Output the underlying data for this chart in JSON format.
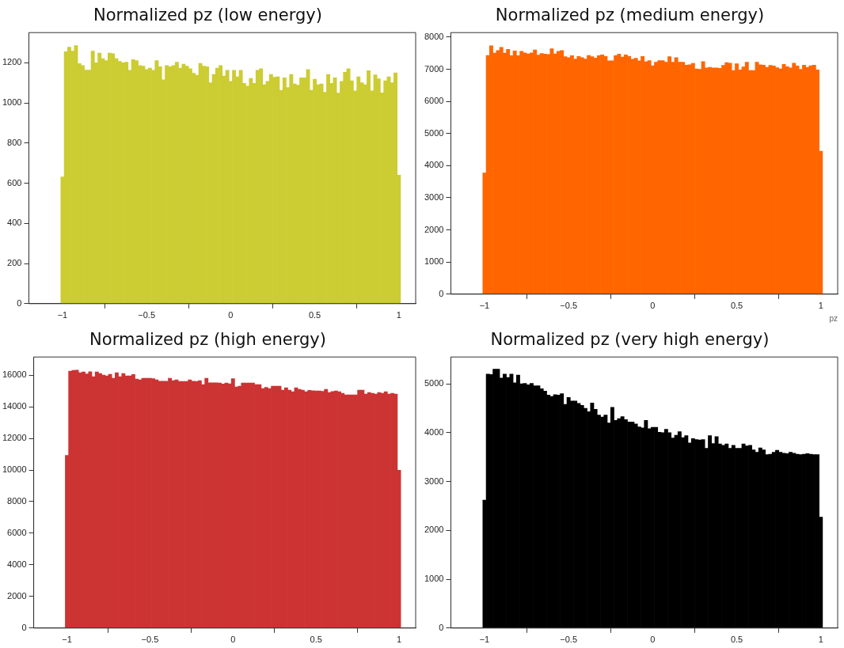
{
  "chart_data": [
    {
      "type": "histogram",
      "title": "Normalized pz (low energy)",
      "color": "#cccc33",
      "bins": [
        -1.01,
        -0.99,
        -0.97,
        -0.95,
        -0.93,
        -0.91,
        -0.89,
        -0.87,
        -0.85,
        -0.83,
        -0.81,
        -0.79,
        -0.77,
        -0.75,
        -0.73,
        -0.71,
        -0.69,
        -0.67,
        -0.65,
        -0.63,
        -0.61,
        -0.59,
        -0.57,
        -0.55,
        -0.53,
        -0.51,
        -0.49,
        -0.47,
        -0.45,
        -0.43,
        -0.41,
        -0.39,
        -0.37,
        -0.35,
        -0.33,
        -0.31,
        -0.29,
        -0.27,
        -0.25,
        -0.23,
        -0.21,
        -0.19,
        -0.17,
        -0.15,
        -0.13,
        -0.11,
        -0.09,
        -0.07,
        -0.05,
        -0.03,
        -0.01,
        0.01,
        0.03,
        0.05,
        0.07,
        0.09,
        0.11,
        0.13,
        0.15,
        0.17,
        0.19,
        0.21,
        0.23,
        0.25,
        0.27,
        0.29,
        0.31,
        0.33,
        0.35,
        0.37,
        0.39,
        0.41,
        0.43,
        0.45,
        0.47,
        0.49,
        0.51,
        0.53,
        0.55,
        0.57,
        0.59,
        0.61,
        0.63,
        0.65,
        0.67,
        0.69,
        0.71,
        0.73,
        0.75,
        0.77,
        0.79,
        0.81,
        0.83,
        0.85,
        0.87,
        0.89,
        0.91,
        0.93,
        0.95,
        0.97,
        0.99,
        1.01
      ],
      "values": [
        631,
        1255,
        1278,
        1258,
        1285,
        1196,
        1186,
        1163,
        1163,
        1258,
        1200,
        1248,
        1220,
        1211,
        1248,
        1245,
        1220,
        1207,
        1200,
        1203,
        1162,
        1216,
        1211,
        1186,
        1183,
        1166,
        1173,
        1162,
        1211,
        1180,
        1115,
        1186,
        1180,
        1186,
        1203,
        1173,
        1193,
        1183,
        1170,
        1148,
        1138,
        1197,
        1183,
        1180,
        1100,
        1142,
        1173,
        1186,
        1134,
        1162,
        1107,
        1162,
        1130,
        1162,
        1097,
        1084,
        1122,
        1097,
        1162,
        1170,
        1090,
        1107,
        1142,
        1128,
        1130,
        1063,
        1125,
        1077,
        1142,
        1094,
        1088,
        1125,
        1125,
        1166,
        1063,
        1118,
        1090,
        1094,
        1053,
        1142,
        1097,
        1125,
        1049,
        1107,
        1152,
        1170,
        1110,
        1060,
        1130,
        1100,
        1090,
        1160,
        1060,
        1140,
        1120,
        1050,
        1110,
        1130,
        1100,
        1150,
        640
      ],
      "xlim": [
        -1.2,
        1.1
      ],
      "xticks": [
        -1,
        -0.5,
        0,
        0.5,
        1
      ],
      "ylim": [
        0,
        1350
      ],
      "yticks": [
        0,
        200,
        400,
        600,
        800,
        1000,
        1200
      ]
    },
    {
      "type": "histogram",
      "title": "Normalized pz (medium energy)",
      "color": "#ff6600",
      "xlabel": "pz",
      "bins": [
        -1.01,
        -0.99,
        -0.97,
        -0.95,
        -0.93,
        -0.91,
        -0.89,
        -0.87,
        -0.85,
        -0.83,
        -0.81,
        -0.79,
        -0.77,
        -0.75,
        -0.73,
        -0.71,
        -0.69,
        -0.67,
        -0.65,
        -0.63,
        -0.61,
        -0.59,
        -0.57,
        -0.55,
        -0.53,
        -0.51,
        -0.49,
        -0.47,
        -0.45,
        -0.43,
        -0.41,
        -0.39,
        -0.37,
        -0.35,
        -0.33,
        -0.31,
        -0.29,
        -0.27,
        -0.25,
        -0.23,
        -0.21,
        -0.19,
        -0.17,
        -0.15,
        -0.13,
        -0.11,
        -0.09,
        -0.07,
        -0.05,
        -0.03,
        -0.01,
        0.01,
        0.03,
        0.05,
        0.07,
        0.09,
        0.11,
        0.13,
        0.15,
        0.17,
        0.19,
        0.21,
        0.23,
        0.25,
        0.27,
        0.29,
        0.31,
        0.33,
        0.35,
        0.37,
        0.39,
        0.41,
        0.43,
        0.45,
        0.47,
        0.49,
        0.51,
        0.53,
        0.55,
        0.57,
        0.59,
        0.61,
        0.63,
        0.65,
        0.67,
        0.69,
        0.71,
        0.73,
        0.75,
        0.77,
        0.79,
        0.81,
        0.83,
        0.85,
        0.87,
        0.89,
        0.91,
        0.93,
        0.95,
        0.97,
        0.99,
        1.01
      ],
      "values": [
        3770,
        7430,
        7730,
        7500,
        7580,
        7680,
        7500,
        7620,
        7420,
        7570,
        7420,
        7560,
        7510,
        7480,
        7510,
        7600,
        7440,
        7490,
        7470,
        7460,
        7640,
        7480,
        7560,
        7580,
        7390,
        7360,
        7420,
        7320,
        7400,
        7360,
        7320,
        7430,
        7390,
        7350,
        7420,
        7450,
        7400,
        7260,
        7260,
        7420,
        7470,
        7380,
        7450,
        7400,
        7310,
        7340,
        7260,
        7400,
        7230,
        7270,
        7110,
        7220,
        7270,
        7270,
        7220,
        7390,
        7220,
        7360,
        7220,
        7220,
        7130,
        7140,
        7180,
        7010,
        7000,
        7240,
        7040,
        7060,
        7040,
        7040,
        7030,
        7120,
        7210,
        7190,
        6960,
        7170,
        6980,
        7070,
        7220,
        6960,
        6960,
        7220,
        7140,
        7130,
        7060,
        7120,
        7100,
        7050,
        7010,
        7150,
        7080,
        7040,
        7190,
        7100,
        7000,
        7130,
        7060,
        7110,
        7130,
        6980,
        4450
      ],
      "xlim": [
        -1.2,
        1.1
      ],
      "xticks": [
        -1,
        -0.5,
        0,
        0.5,
        1
      ],
      "ylim": [
        0,
        8140
      ],
      "yticks": [
        0,
        1000,
        2000,
        3000,
        4000,
        5000,
        6000,
        7000,
        8000
      ]
    },
    {
      "type": "histogram",
      "title": "Normalized pz (high energy)",
      "color": "#cc3333",
      "bins": [
        -1.01,
        -0.99,
        -0.97,
        -0.95,
        -0.93,
        -0.91,
        -0.89,
        -0.87,
        -0.85,
        -0.83,
        -0.81,
        -0.79,
        -0.77,
        -0.75,
        -0.73,
        -0.71,
        -0.69,
        -0.67,
        -0.65,
        -0.63,
        -0.61,
        -0.59,
        -0.57,
        -0.55,
        -0.53,
        -0.51,
        -0.49,
        -0.47,
        -0.45,
        -0.43,
        -0.41,
        -0.39,
        -0.37,
        -0.35,
        -0.33,
        -0.31,
        -0.29,
        -0.27,
        -0.25,
        -0.23,
        -0.21,
        -0.19,
        -0.17,
        -0.15,
        -0.13,
        -0.11,
        -0.09,
        -0.07,
        -0.05,
        -0.03,
        -0.01,
        0.01,
        0.03,
        0.05,
        0.07,
        0.09,
        0.11,
        0.13,
        0.15,
        0.17,
        0.19,
        0.21,
        0.23,
        0.25,
        0.27,
        0.29,
        0.31,
        0.33,
        0.35,
        0.37,
        0.39,
        0.41,
        0.43,
        0.45,
        0.47,
        0.49,
        0.51,
        0.53,
        0.55,
        0.57,
        0.59,
        0.61,
        0.63,
        0.65,
        0.67,
        0.69,
        0.71,
        0.73,
        0.75,
        0.77,
        0.79,
        0.81,
        0.83,
        0.85,
        0.87,
        0.89,
        0.91,
        0.93,
        0.95,
        0.97,
        0.99,
        1.01
      ],
      "values": [
        10920,
        16250,
        16300,
        16320,
        16150,
        16200,
        16080,
        16220,
        15900,
        16200,
        16100,
        16000,
        15950,
        16050,
        15800,
        16150,
        15900,
        16100,
        15960,
        15960,
        16040,
        15750,
        15700,
        15800,
        15800,
        15800,
        15780,
        15700,
        15620,
        15620,
        15620,
        15800,
        15650,
        15700,
        15600,
        15600,
        15600,
        15700,
        15620,
        15600,
        15650,
        15400,
        15800,
        15520,
        15520,
        15520,
        15500,
        15440,
        15500,
        15460,
        15780,
        15250,
        15300,
        15500,
        15500,
        15500,
        15500,
        15400,
        15400,
        15150,
        15230,
        15150,
        15300,
        15300,
        15300,
        15050,
        15200,
        15050,
        14950,
        15200,
        15100,
        15050,
        14950,
        15040,
        15020,
        15000,
        15000,
        14980,
        15100,
        14900,
        14960,
        15000,
        14950,
        14850,
        14750,
        14750,
        14750,
        14750,
        15050,
        15050,
        14800,
        14900,
        14850,
        14800,
        14900,
        14850,
        14950,
        14800,
        14850,
        14800,
        9980
      ],
      "xlim": [
        -1.2,
        1.1
      ],
      "xticks": [
        -1,
        -0.5,
        0,
        0.5,
        1
      ],
      "ylim": [
        0,
        17150
      ],
      "yticks": [
        0,
        2000,
        4000,
        6000,
        8000,
        10000,
        12000,
        14000,
        16000
      ]
    },
    {
      "type": "histogram",
      "title": "Normalized pz (very high energy)",
      "color": "#000000",
      "bins": [
        -1.01,
        -0.99,
        -0.97,
        -0.95,
        -0.93,
        -0.91,
        -0.89,
        -0.87,
        -0.85,
        -0.83,
        -0.81,
        -0.79,
        -0.77,
        -0.75,
        -0.73,
        -0.71,
        -0.69,
        -0.67,
        -0.65,
        -0.63,
        -0.61,
        -0.59,
        -0.57,
        -0.55,
        -0.53,
        -0.51,
        -0.49,
        -0.47,
        -0.45,
        -0.43,
        -0.41,
        -0.39,
        -0.37,
        -0.35,
        -0.33,
        -0.31,
        -0.29,
        -0.27,
        -0.25,
        -0.23,
        -0.21,
        -0.19,
        -0.17,
        -0.15,
        -0.13,
        -0.11,
        -0.09,
        -0.07,
        -0.05,
        -0.03,
        -0.01,
        0.01,
        0.03,
        0.05,
        0.07,
        0.09,
        0.11,
        0.13,
        0.15,
        0.17,
        0.19,
        0.21,
        0.23,
        0.25,
        0.27,
        0.29,
        0.31,
        0.33,
        0.35,
        0.37,
        0.39,
        0.41,
        0.43,
        0.45,
        0.47,
        0.49,
        0.51,
        0.53,
        0.55,
        0.57,
        0.59,
        0.61,
        0.63,
        0.65,
        0.67,
        0.69,
        0.71,
        0.73,
        0.75,
        0.77,
        0.79,
        0.81,
        0.83,
        0.85,
        0.87,
        0.89,
        0.91,
        0.93,
        0.95,
        0.97,
        0.99,
        1.01
      ],
      "values": [
        2620,
        5200,
        5190,
        5300,
        5300,
        5120,
        5200,
        5130,
        5200,
        5020,
        5180,
        5000,
        5010,
        4980,
        5010,
        4960,
        4960,
        4900,
        4850,
        4770,
        4740,
        4780,
        4770,
        4800,
        4580,
        4720,
        4650,
        4650,
        4600,
        4560,
        4500,
        4430,
        4610,
        4480,
        4360,
        4320,
        4360,
        4200,
        4520,
        4250,
        4290,
        4330,
        4270,
        4220,
        4220,
        4180,
        4120,
        4100,
        4250,
        4080,
        4110,
        4110,
        4010,
        4000,
        4070,
        4000,
        3890,
        3950,
        4020,
        3900,
        3940,
        3790,
        3880,
        3860,
        3850,
        3860,
        3680,
        3940,
        3780,
        3920,
        3770,
        3740,
        3770,
        3680,
        3740,
        3680,
        3680,
        3770,
        3730,
        3740,
        3650,
        3600,
        3690,
        3650,
        3550,
        3560,
        3600,
        3640,
        3600,
        3580,
        3570,
        3600,
        3580,
        3560,
        3550,
        3560,
        3570,
        3560,
        3550,
        3550,
        2270
      ],
      "xlim": [
        -1.2,
        1.1
      ],
      "xticks": [
        -1,
        -0.5,
        0,
        0.5,
        1
      ],
      "ylim": [
        0,
        5550
      ],
      "yticks": [
        0,
        1000,
        2000,
        3000,
        4000,
        5000
      ]
    }
  ]
}
